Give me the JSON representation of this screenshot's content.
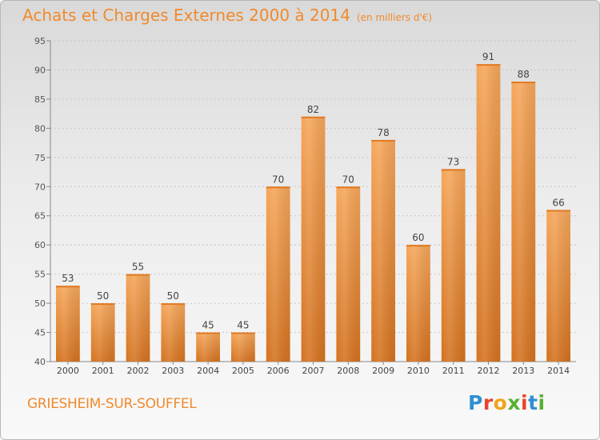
{
  "header": {
    "title": "Achats et Charges Externes 2000 à 2014",
    "subtitle": "(en milliers d'€)"
  },
  "footer": {
    "location": "GRIESHEIM-SUR-SOUFFEL",
    "brand": {
      "letters": [
        {
          "char": "P",
          "color": "#2f8fd3"
        },
        {
          "char": "r",
          "color": "#e8452c"
        },
        {
          "char": "o",
          "color": "#f2a31c"
        },
        {
          "char": "x",
          "color": "#58b031"
        },
        {
          "char": "i",
          "color": "#e8452c"
        },
        {
          "char": "t",
          "color": "#2f8fd3"
        },
        {
          "char": "i",
          "color": "#58b031"
        }
      ]
    }
  },
  "colors": {
    "accent": "#f08a2c",
    "bar_top": "#f5a65a",
    "bar_bottom": "#d4721f",
    "grid": "#c8c8c8"
  },
  "chart_data": {
    "type": "bar",
    "categories": [
      "2000",
      "2001",
      "2002",
      "2003",
      "2004",
      "2005",
      "2006",
      "2007",
      "2008",
      "2009",
      "2010",
      "2011",
      "2012",
      "2013",
      "2014"
    ],
    "values": [
      53,
      50,
      55,
      50,
      45,
      45,
      70,
      82,
      70,
      78,
      60,
      73,
      91,
      88,
      66
    ],
    "data_labels": [
      "53",
      "50",
      "55",
      "50",
      "45",
      "45",
      "70",
      "82",
      "70",
      "78",
      "60",
      "73",
      "91",
      "88",
      "66"
    ],
    "ylim": [
      40,
      95
    ],
    "yticks": [
      40,
      45,
      50,
      55,
      60,
      65,
      70,
      75,
      80,
      85,
      90,
      95
    ],
    "ytick_labels": [
      "40",
      "45",
      "50",
      "55",
      "60",
      "65",
      "70",
      "75",
      "80",
      "85",
      "90",
      "95"
    ],
    "grid": true,
    "legend": "none"
  }
}
